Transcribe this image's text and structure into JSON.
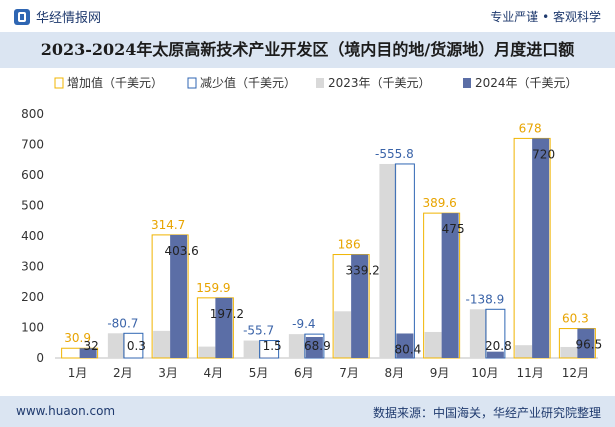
{
  "header": {
    "brand": "华经情报网",
    "slogan": "专业严谨 • 客观科学",
    "title": "2023-2024年太原高新技术产业开发区（境内目的地/货源地）月度进口额"
  },
  "footer": {
    "url": "www.huaon.com",
    "source": "数据来源：中国海关，华经产业研究院整理"
  },
  "colors": {
    "bar_2023": "#d9d9d9",
    "bar_2024": "#5b6ea6",
    "increase": "#f0b400",
    "decrease": "#2f66b3",
    "label_orange": "#e8a400",
    "label_blue": "#3a63a8"
  },
  "chart_data": {
    "type": "bar",
    "title": "2023-2024年太原高新技术产业开发区（境内目的地/货源地）月度进口额",
    "categories": [
      "1月",
      "2月",
      "3月",
      "4月",
      "5月",
      "6月",
      "7月",
      "8月",
      "9月",
      "10月",
      "11月",
      "12月"
    ],
    "legend": [
      "增加值（千美元）",
      "减少值（千美元）",
      "2023年（千美元）",
      "2024年（千美元）"
    ],
    "series": [
      {
        "name": "2023年（千美元）",
        "values": [
          1.1,
          81.0,
          88.9,
          37.3,
          57.2,
          78.3,
          153.2,
          636.2,
          85.4,
          159.7,
          42.0,
          36.2
        ]
      },
      {
        "name": "2024年（千美元）",
        "values": [
          32,
          0.3,
          403.6,
          197.2,
          1.5,
          68.9,
          339.2,
          80.4,
          475,
          20.8,
          720,
          96.5
        ]
      }
    ],
    "change": [
      30.9,
      -80.7,
      314.7,
      159.9,
      -55.7,
      -9.4,
      186,
      -555.8,
      389.6,
      -138.9,
      678,
      60.3
    ],
    "ylim": [
      0,
      800
    ],
    "yticks": [
      0,
      100,
      200,
      300,
      400,
      500,
      600,
      700,
      800
    ],
    "legend_position": "top-left",
    "grid": false
  }
}
